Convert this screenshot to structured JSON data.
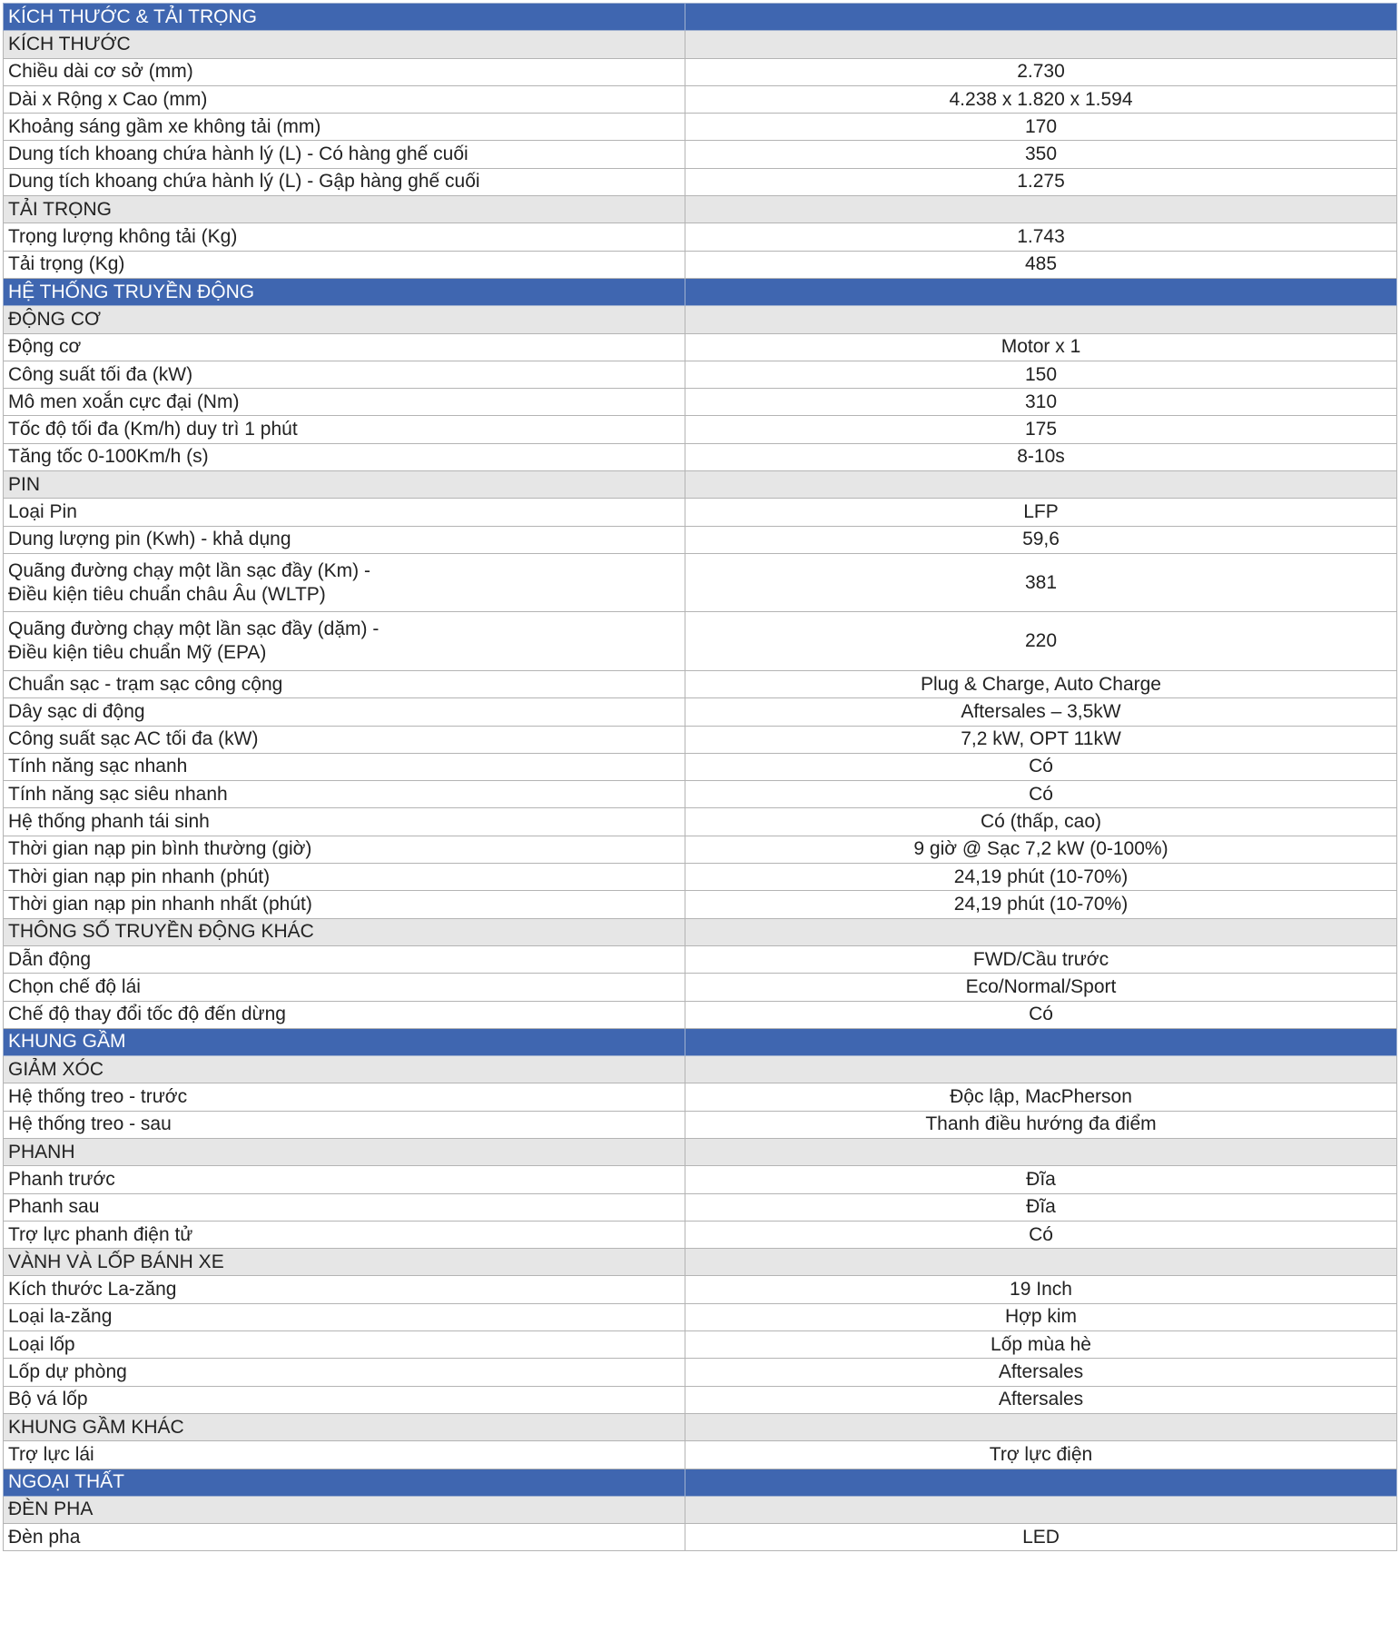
{
  "colors": {
    "header_bg": "#3f66b0",
    "subheader_bg": "#e6e6e6",
    "border": "#b4b4b4"
  },
  "rows": [
    {
      "type": "h",
      "label": "KÍCH THƯỚC & TẢI TRỌNG",
      "value": ""
    },
    {
      "type": "s",
      "label": "KÍCH THƯỚC",
      "value": ""
    },
    {
      "type": "r",
      "label": "Chiều dài cơ sở (mm)",
      "value": "2.730"
    },
    {
      "type": "r",
      "label": "Dài x Rộng x Cao (mm)",
      "value": "4.238 x 1.820 x  1.594"
    },
    {
      "type": "r",
      "label": "Khoảng sáng gầm xe không tải (mm)",
      "value": "170"
    },
    {
      "type": "r",
      "label": "Dung tích khoang chứa hành lý (L) - Có hàng ghế cuối",
      "value": "350"
    },
    {
      "type": "r",
      "label": "Dung tích khoang chứa hành lý (L) - Gập hàng ghế cuối",
      "value": "1.275"
    },
    {
      "type": "s",
      "label": "TẢI TRỌNG",
      "value": ""
    },
    {
      "type": "r",
      "label": "Trọng lượng không tải (Kg)",
      "value": "1.743"
    },
    {
      "type": "r",
      "label": "Tải trọng (Kg)",
      "value": "485"
    },
    {
      "type": "h",
      "label": "HỆ THỐNG TRUYỀN ĐỘNG",
      "value": ""
    },
    {
      "type": "s",
      "label": "ĐỘNG CƠ",
      "value": ""
    },
    {
      "type": "r",
      "label": "Động cơ",
      "value": "Motor x 1"
    },
    {
      "type": "r",
      "label": "Công suất tối đa (kW)",
      "value": "150"
    },
    {
      "type": "r",
      "label": "Mô men xoắn cực đại (Nm)",
      "value": "310"
    },
    {
      "type": "r",
      "label": "Tốc độ tối đa (Km/h) duy trì 1 phút",
      "value": "175"
    },
    {
      "type": "r",
      "label": "Tăng tốc 0-100Km/h (s)",
      "value": "8-10s"
    },
    {
      "type": "s",
      "label": "PIN",
      "value": ""
    },
    {
      "type": "r",
      "label": "Loại Pin",
      "value": "LFP"
    },
    {
      "type": "r",
      "label": "Dung lượng pin (Kwh) - khả dụng",
      "value": "59,6"
    },
    {
      "type": "d",
      "label": "Quãng đường chạy một lần sạc đầy (Km) -",
      "label2": "Điều kiện tiêu chuẩn châu Âu (WLTP)",
      "value": "381"
    },
    {
      "type": "d",
      "label": "Quãng đường chạy một lần sạc đầy (dặm) -",
      "label2": "Điều kiện tiêu chuẩn Mỹ (EPA)",
      "value": "220"
    },
    {
      "type": "r",
      "label": "Chuẩn sạc - trạm sạc công cộng",
      "value": "Plug & Charge, Auto Charge"
    },
    {
      "type": "r",
      "label": "Dây sạc di động",
      "value": "Aftersales – 3,5kW"
    },
    {
      "type": "r",
      "label": "Công suất sạc AC tối đa (kW)",
      "value": "7,2 kW, OPT 11kW"
    },
    {
      "type": "r",
      "label": "Tính năng sạc nhanh",
      "value": "Có"
    },
    {
      "type": "r",
      "label": "Tính năng sạc siêu nhanh",
      "value": "Có"
    },
    {
      "type": "r",
      "label": "Hệ thống phanh tái sinh",
      "value": "Có (thấp, cao)"
    },
    {
      "type": "r",
      "label": "Thời gian nạp pin bình thường (giờ)",
      "value": "9 giờ @ Sạc 7,2 kW (0-100%)"
    },
    {
      "type": "r",
      "label": "Thời gian nạp pin nhanh (phút)",
      "value": "24,19 phút (10-70%)"
    },
    {
      "type": "r",
      "label": "Thời gian nạp pin nhanh nhất (phút)",
      "value": "24,19 phút (10-70%)"
    },
    {
      "type": "s",
      "label": "THÔNG SỐ TRUYỀN ĐỘNG KHÁC",
      "value": ""
    },
    {
      "type": "r",
      "label": "Dẫn động",
      "value": "FWD/Cầu trước"
    },
    {
      "type": "r",
      "label": "Chọn chế độ lái",
      "value": "Eco/Normal/Sport"
    },
    {
      "type": "r",
      "label": "Chế độ thay đổi tốc độ đến dừng",
      "value": "Có"
    },
    {
      "type": "h",
      "label": "KHUNG GẦM",
      "value": ""
    },
    {
      "type": "s",
      "label": "GIẢM XÓC",
      "value": ""
    },
    {
      "type": "r",
      "label": "Hệ thống treo - trước",
      "value": "Độc lập, MacPherson"
    },
    {
      "type": "r",
      "label": "Hệ thống treo - sau",
      "value": "Thanh điều hướng đa điểm"
    },
    {
      "type": "s",
      "label": "PHANH",
      "value": ""
    },
    {
      "type": "r",
      "label": "Phanh trước",
      "value": "Đĩa"
    },
    {
      "type": "r",
      "label": "Phanh sau",
      "value": "Đĩa"
    },
    {
      "type": "r",
      "label": "Trợ lực phanh điện tử",
      "value": "Có"
    },
    {
      "type": "s",
      "label": "VÀNH VÀ LỐP BÁNH XE",
      "value": ""
    },
    {
      "type": "r",
      "label": "Kích thước La-zăng",
      "value": "19 Inch"
    },
    {
      "type": "r",
      "label": "Loại la-zăng",
      "value": "Hợp kim"
    },
    {
      "type": "r",
      "label": "Loại lốp",
      "value": "Lốp mùa hè"
    },
    {
      "type": "r",
      "label": "Lốp dự phòng",
      "value": "Aftersales"
    },
    {
      "type": "r",
      "label": "Bộ vá lốp",
      "value": "Aftersales"
    },
    {
      "type": "s",
      "label": "KHUNG GẦM KHÁC",
      "value": ""
    },
    {
      "type": "r",
      "label": "Trợ lực lái",
      "value": "Trợ lực điện"
    },
    {
      "type": "h",
      "label": "NGOẠI THẤT",
      "value": ""
    },
    {
      "type": "s",
      "label": "ĐÈN PHA",
      "value": ""
    },
    {
      "type": "r",
      "label": "Đèn pha",
      "value": "LED"
    }
  ]
}
